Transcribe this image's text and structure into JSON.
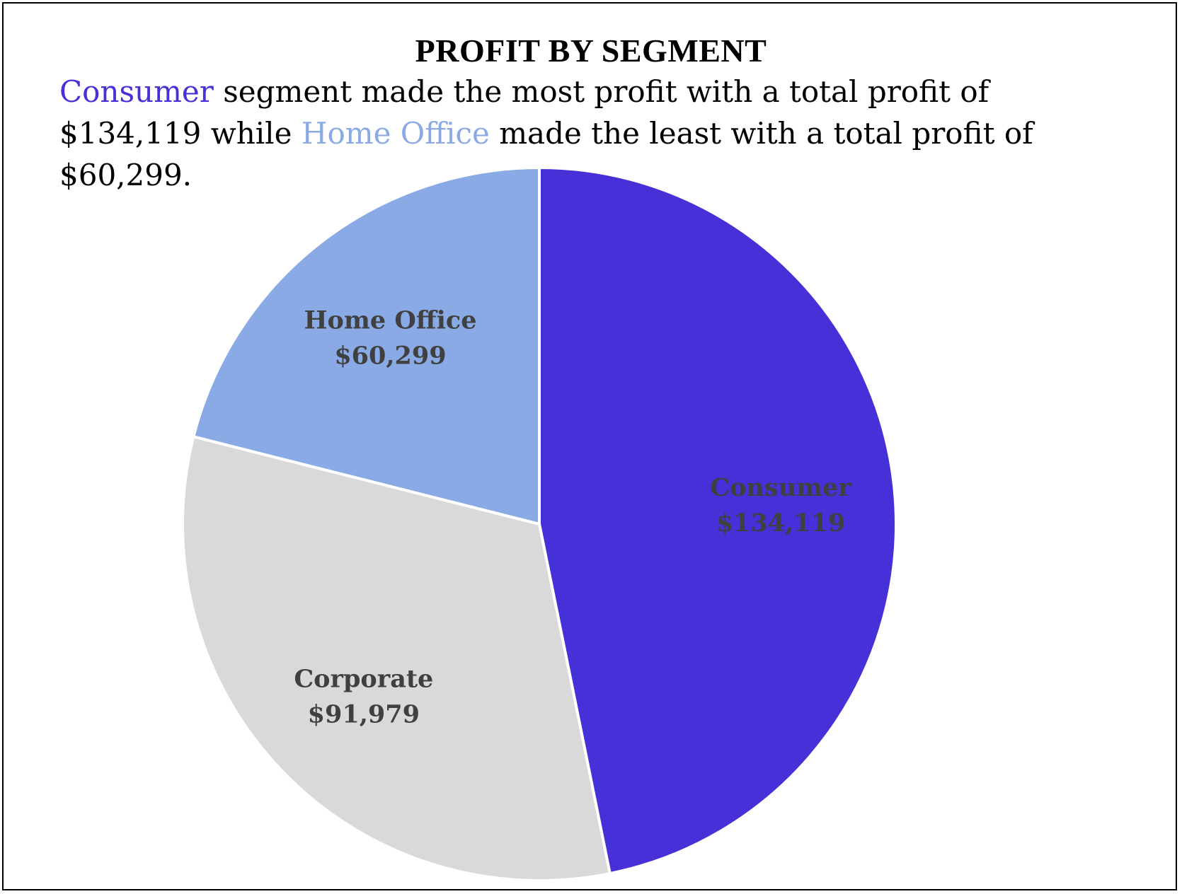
{
  "chart_data": {
    "type": "pie",
    "title": "PROFIT BY SEGMENT",
    "subtitle_parts": [
      {
        "text": "Consumer",
        "color": "#4630d8"
      },
      {
        "text": " segment made the most profit with a total profit of $134,119 while ",
        "color": "#000000"
      },
      {
        "text": "Home Office",
        "color": "#8aaae5"
      },
      {
        "text": " made the least with a total profit of $60,299.",
        "color": "#000000"
      }
    ],
    "start_angle_deg": 0,
    "direction": "clockwise",
    "slices": [
      {
        "label": "Consumer",
        "value": 134119,
        "value_label": "$134,119",
        "color": "#4630d8"
      },
      {
        "label": "Corporate",
        "value": 91979,
        "value_label": "$91,979",
        "color": "#d9d9d9"
      },
      {
        "label": "Home Office",
        "value": 60299,
        "value_label": "$60,299",
        "color": "#8aaae5"
      }
    ],
    "legend": "none"
  }
}
